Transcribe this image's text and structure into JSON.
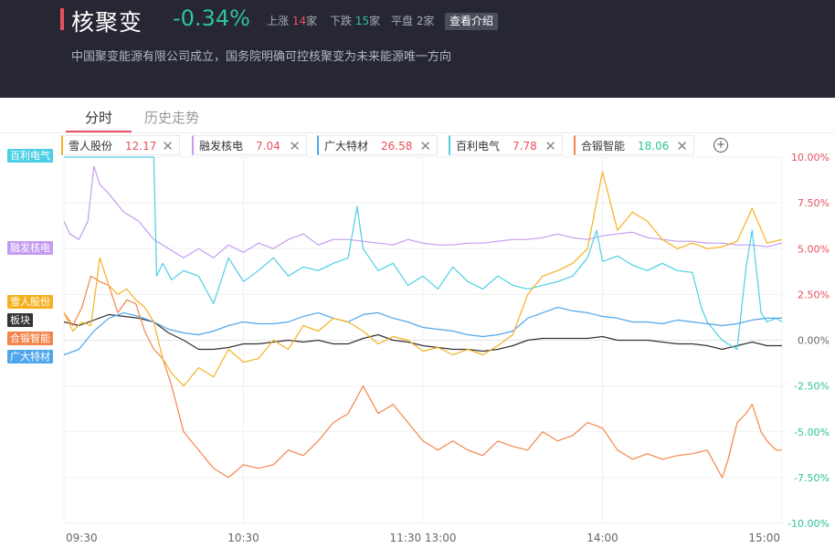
{
  "header": {
    "title": "核聚变",
    "change": "-0.34%",
    "up_label": "上涨",
    "up_count": "14",
    "up_unit": "家",
    "down_label": "下跌",
    "down_count": "15",
    "down_unit": "家",
    "flat_label": "平盘",
    "flat_count": "2",
    "flat_unit": "家",
    "intro_button": "查看介绍",
    "subtitle": "中国聚变能源有限公司成立，国务院明确可控核聚变为未来能源唯一方向"
  },
  "tabs": [
    {
      "label": "分时",
      "active": true
    },
    {
      "label": "历史走势",
      "active": false
    }
  ],
  "legend": [
    {
      "name": "雪人股份",
      "value": "12.17",
      "color": "#f5b120"
    },
    {
      "name": "融发核电",
      "value": "7.04",
      "color": "#c49bf0"
    },
    {
      "name": "广大特材",
      "value": "26.58",
      "color": "#4fa6ec"
    },
    {
      "name": "百利电气",
      "value": "7.78",
      "color": "#4ccfe4"
    },
    {
      "name": "合锻智能",
      "value": "18.06",
      "color": "#f4844b"
    }
  ],
  "side_tags": [
    {
      "label": "百利电气",
      "color": "#4ccfe4"
    },
    {
      "label": "融发核电",
      "color": "#c49bf0"
    },
    {
      "label": "雪人股份",
      "color": "#f5b120"
    },
    {
      "label": "板块",
      "color": "#333333"
    },
    {
      "label": "合锻智能",
      "color": "#f4844b"
    },
    {
      "label": "广大特材",
      "color": "#4fa6ec"
    }
  ],
  "chart_data": {
    "type": "line",
    "x_ticks": [
      "09:30",
      "10:30",
      "11:30 13:00",
      "14:00",
      "15:00"
    ],
    "y_ticks": [
      "10.00%",
      "7.50%",
      "5.00%",
      "2.50%",
      "0.00%",
      "-2.50%",
      "-5.00%",
      "-7.50%",
      "-10.00%"
    ],
    "ylim": [
      -10,
      10
    ],
    "xlim": [
      0,
      240
    ],
    "grid": true,
    "series": [
      {
        "name": "百利电气",
        "color": "#4ccfe4",
        "x": [
          0,
          5,
          10,
          20,
          30,
          31,
          33,
          36,
          40,
          45,
          50,
          55,
          60,
          65,
          70,
          75,
          80,
          85,
          90,
          95,
          98,
          100,
          105,
          110,
          115,
          120,
          125,
          130,
          135,
          140,
          145,
          150,
          155,
          160,
          165,
          170,
          175,
          178,
          180,
          185,
          190,
          195,
          200,
          205,
          210,
          213,
          215,
          220,
          225,
          228,
          230,
          233,
          235,
          238,
          240
        ],
        "y": [
          10,
          10,
          10,
          10,
          10,
          3.5,
          4.2,
          3.3,
          3.8,
          3.5,
          2,
          4.5,
          3.2,
          3.8,
          4.5,
          3.5,
          4,
          3.8,
          4.2,
          4.5,
          7.3,
          5,
          3.8,
          4.2,
          3,
          3.5,
          2.8,
          4,
          3.2,
          2.8,
          3.5,
          3,
          2.8,
          3,
          3.2,
          3.5,
          4.5,
          6,
          4.3,
          4.6,
          4.1,
          3.8,
          4.2,
          3.8,
          3.7,
          1.8,
          1,
          0,
          -0.5,
          4,
          6,
          1.5,
          1,
          1.2,
          1
        ]
      },
      {
        "name": "融发核电",
        "color": "#c49bf0",
        "x": [
          0,
          2,
          5,
          8,
          10,
          12,
          15,
          20,
          25,
          30,
          35,
          40,
          45,
          50,
          55,
          60,
          65,
          70,
          75,
          80,
          85,
          90,
          95,
          100,
          105,
          110,
          115,
          120,
          125,
          130,
          135,
          140,
          145,
          150,
          155,
          160,
          165,
          170,
          175,
          180,
          185,
          190,
          195,
          200,
          205,
          210,
          215,
          220,
          225,
          230,
          235,
          240
        ],
        "y": [
          6.5,
          5.8,
          5.5,
          6.5,
          9.5,
          8.5,
          8,
          7,
          6.5,
          5.5,
          5,
          4.5,
          5,
          4.5,
          5.2,
          4.8,
          5.3,
          5,
          5.5,
          5.8,
          5.2,
          5.5,
          5.5,
          5.4,
          5.3,
          5.2,
          5.5,
          5.3,
          5.2,
          5.2,
          5.3,
          5.3,
          5.4,
          5.5,
          5.5,
          5.6,
          5.8,
          5.6,
          5.5,
          5.7,
          5.8,
          5.9,
          5.6,
          5.5,
          5.4,
          5.4,
          5.3,
          5.3,
          5.2,
          5.2,
          5.1,
          5.3
        ]
      },
      {
        "name": "雪人股份",
        "color": "#f5b120",
        "x": [
          0,
          3,
          6,
          9,
          12,
          15,
          18,
          21,
          24,
          27,
          30,
          33,
          36,
          40,
          45,
          50,
          55,
          60,
          65,
          70,
          75,
          80,
          85,
          90,
          95,
          100,
          105,
          110,
          115,
          120,
          125,
          130,
          135,
          140,
          145,
          150,
          155,
          160,
          165,
          170,
          175,
          180,
          185,
          190,
          195,
          200,
          205,
          210,
          215,
          220,
          225,
          230,
          235,
          240
        ],
        "y": [
          1.5,
          0.5,
          1,
          0.8,
          4.5,
          3,
          2.5,
          2.8,
          2.2,
          1.8,
          1,
          -1,
          -1.8,
          -2.5,
          -1.5,
          -2,
          -0.5,
          -1.2,
          -1,
          0,
          -0.5,
          0.8,
          0.5,
          1.2,
          1,
          0.5,
          -0.2,
          0.2,
          0,
          -0.6,
          -0.4,
          -0.8,
          -0.5,
          -0.8,
          -0.3,
          0.3,
          2.5,
          3.5,
          3.8,
          4.2,
          5,
          9.2,
          6,
          7,
          6.5,
          5.5,
          5,
          5.3,
          5,
          5.1,
          5.4,
          7.2,
          5.3,
          5.5
        ]
      },
      {
        "name": "板块",
        "color": "#333333",
        "x": [
          0,
          5,
          10,
          15,
          20,
          25,
          30,
          35,
          40,
          45,
          50,
          55,
          60,
          65,
          70,
          75,
          80,
          85,
          90,
          95,
          100,
          105,
          110,
          115,
          120,
          125,
          130,
          135,
          140,
          145,
          150,
          155,
          160,
          165,
          170,
          175,
          180,
          185,
          190,
          195,
          200,
          205,
          210,
          215,
          220,
          225,
          230,
          235,
          240
        ],
        "y": [
          1,
          0.8,
          1.1,
          1.4,
          1.3,
          1.2,
          1,
          0.4,
          0,
          -0.5,
          -0.5,
          -0.4,
          -0.2,
          -0.2,
          -0.1,
          0,
          -0.1,
          0,
          -0.2,
          -0.2,
          0.1,
          0.3,
          0,
          -0.1,
          -0.3,
          -0.4,
          -0.5,
          -0.5,
          -0.6,
          -0.5,
          -0.3,
          0,
          0.1,
          0.1,
          0.1,
          0.1,
          0.2,
          0,
          0,
          0,
          -0.1,
          -0.2,
          -0.2,
          -0.3,
          -0.5,
          -0.3,
          -0.1,
          -0.3,
          -0.3
        ]
      },
      {
        "name": "合锻智能",
        "color": "#f4844b",
        "x": [
          0,
          3,
          6,
          9,
          12,
          15,
          18,
          21,
          24,
          27,
          30,
          33,
          36,
          40,
          45,
          50,
          55,
          60,
          65,
          70,
          75,
          80,
          85,
          90,
          95,
          100,
          105,
          110,
          115,
          120,
          125,
          130,
          135,
          140,
          145,
          150,
          155,
          160,
          165,
          170,
          175,
          180,
          185,
          190,
          195,
          200,
          205,
          210,
          215,
          220,
          222,
          225,
          228,
          230,
          233,
          235,
          238,
          240
        ],
        "y": [
          1.5,
          0.8,
          1.8,
          3.5,
          3.2,
          3,
          1.5,
          2.2,
          2,
          0.5,
          -0.5,
          -1,
          -2.5,
          -5,
          -6,
          -7,
          -7.5,
          -6.8,
          -7,
          -6.8,
          -6,
          -6.3,
          -5.5,
          -4.5,
          -4,
          -2.5,
          -4,
          -3.5,
          -4.5,
          -5.5,
          -6,
          -5.5,
          -6,
          -6.3,
          -5.5,
          -5.8,
          -6,
          -5,
          -5.5,
          -5.2,
          -4.5,
          -4.8,
          -6,
          -6.5,
          -6.2,
          -6.5,
          -6.3,
          -6.2,
          -6,
          -7.5,
          -6.5,
          -4.5,
          -4,
          -3.5,
          -5,
          -5.5,
          -6,
          -6
        ]
      },
      {
        "name": "广大特材",
        "color": "#4fa6ec",
        "x": [
          0,
          5,
          10,
          15,
          20,
          25,
          30,
          35,
          40,
          45,
          50,
          55,
          60,
          65,
          70,
          75,
          80,
          85,
          90,
          95,
          100,
          105,
          110,
          115,
          120,
          125,
          130,
          135,
          140,
          145,
          150,
          155,
          160,
          165,
          170,
          175,
          180,
          185,
          190,
          195,
          200,
          205,
          210,
          215,
          220,
          225,
          230,
          235,
          240
        ],
        "y": [
          -0.8,
          -0.5,
          0.5,
          1.2,
          1.5,
          1.3,
          1,
          0.6,
          0.4,
          0.3,
          0.5,
          0.8,
          1,
          0.9,
          0.9,
          1,
          1.3,
          1.5,
          1.2,
          1,
          1.4,
          1.5,
          1.2,
          1,
          0.7,
          0.6,
          0.5,
          0.3,
          0.2,
          0.3,
          0.5,
          1.2,
          1.5,
          1.8,
          1.6,
          1.5,
          1.3,
          1.2,
          1,
          1,
          0.9,
          1.1,
          1,
          0.9,
          0.8,
          0.9,
          1.1,
          1.2,
          1.2
        ]
      }
    ]
  }
}
